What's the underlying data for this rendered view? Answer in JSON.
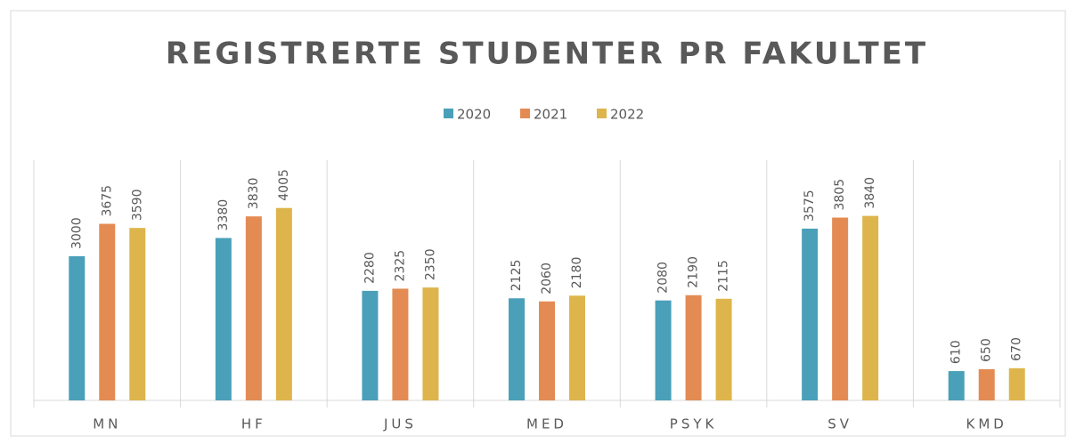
{
  "chart_data": {
    "type": "bar",
    "title": "REGISTRERTE STUDENTER PR FAKULTET",
    "categories": [
      "MN",
      "HF",
      "JUS",
      "MED",
      "PSYK",
      "SV",
      "KMD"
    ],
    "series": [
      {
        "name": "2020",
        "color": "#4aa0b9",
        "values": [
          3000,
          3380,
          2280,
          2125,
          2080,
          3575,
          610
        ]
      },
      {
        "name": "2021",
        "color": "#e38b53",
        "values": [
          3675,
          3830,
          2325,
          2060,
          2190,
          3805,
          650
        ]
      },
      {
        "name": "2022",
        "color": "#deb54c",
        "values": [
          3590,
          4005,
          2350,
          2180,
          2115,
          3840,
          670
        ]
      }
    ],
    "ylim": [
      0,
      5000
    ],
    "legend": "top",
    "data_labels": true
  }
}
